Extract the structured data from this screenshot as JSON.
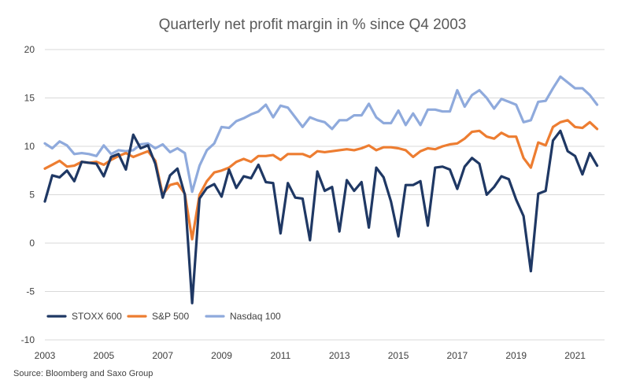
{
  "chart_data": {
    "type": "line",
    "title": "Quarterly net profit margin in % since Q4 2003",
    "xlabel": "",
    "ylabel": "",
    "x_tick_labels": [
      "2003",
      "2005",
      "2007",
      "2009",
      "2011",
      "2013",
      "2015",
      "2017",
      "2019",
      "2021"
    ],
    "x_tick_years": [
      2003,
      2005,
      2007,
      2009,
      2011,
      2013,
      2015,
      2017,
      2019,
      2021
    ],
    "xlim": [
      2003,
      2022
    ],
    "y_tick_labels": [
      "20",
      "15",
      "10",
      "5",
      "0",
      "-5",
      "-10"
    ],
    "y_tick_values": [
      20,
      15,
      10,
      5,
      0,
      -5,
      -10
    ],
    "ylim": [
      -10,
      20
    ],
    "grid": "horizontal",
    "legend_position": "bottom-left",
    "source": "Source: Bloomberg and Saxo Group",
    "x": [
      2003.0,
      2003.25,
      2003.5,
      2003.75,
      2004.0,
      2004.25,
      2004.5,
      2004.75,
      2005.0,
      2005.25,
      2005.5,
      2005.75,
      2006.0,
      2006.25,
      2006.5,
      2006.75,
      2007.0,
      2007.25,
      2007.5,
      2007.75,
      2008.0,
      2008.25,
      2008.5,
      2008.75,
      2009.0,
      2009.25,
      2009.5,
      2009.75,
      2010.0,
      2010.25,
      2010.5,
      2010.75,
      2011.0,
      2011.25,
      2011.5,
      2011.75,
      2012.0,
      2012.25,
      2012.5,
      2012.75,
      2013.0,
      2013.25,
      2013.5,
      2013.75,
      2014.0,
      2014.25,
      2014.5,
      2014.75,
      2015.0,
      2015.25,
      2015.5,
      2015.75,
      2016.0,
      2016.25,
      2016.5,
      2016.75,
      2017.0,
      2017.25,
      2017.5,
      2017.75,
      2018.0,
      2018.25,
      2018.5,
      2018.75,
      2019.0,
      2019.25,
      2019.5,
      2019.75,
      2020.0,
      2020.25,
      2020.5,
      2020.75,
      2021.0,
      2021.25,
      2021.5,
      2021.75
    ],
    "series": [
      {
        "name": "STOXX 600",
        "color": "#1f3864",
        "values": [
          4.3,
          7.0,
          6.8,
          7.5,
          6.4,
          8.4,
          8.3,
          8.2,
          6.9,
          8.9,
          9.2,
          7.6,
          11.2,
          9.8,
          10.1,
          8.2,
          4.7,
          7.0,
          7.7,
          5.0,
          -6.2,
          4.6,
          5.7,
          6.1,
          4.8,
          7.6,
          5.7,
          6.9,
          6.7,
          8.1,
          6.3,
          6.2,
          1.0,
          6.2,
          4.7,
          4.6,
          0.3,
          7.4,
          5.4,
          5.8,
          1.2,
          6.5,
          5.4,
          6.3,
          1.6,
          7.8,
          6.8,
          4.3,
          0.7,
          6.0,
          6.0,
          6.4,
          1.8,
          7.8,
          7.9,
          7.6,
          5.6,
          7.9,
          8.8,
          8.2,
          5.0,
          5.8,
          6.9,
          6.6,
          4.5,
          2.8,
          -2.9,
          5.1,
          5.4,
          10.6,
          11.6,
          9.5,
          9.0,
          7.1,
          9.3,
          8.0
        ]
      },
      {
        "name": "S&P 500",
        "color": "#ed7d31",
        "values": [
          7.7,
          8.1,
          8.5,
          7.9,
          8.0,
          8.4,
          8.3,
          8.4,
          8.1,
          8.6,
          9.0,
          9.3,
          8.9,
          9.2,
          9.5,
          8.5,
          5.0,
          6.0,
          6.2,
          5.1,
          0.4,
          5.0,
          6.4,
          7.3,
          7.5,
          7.8,
          8.4,
          8.7,
          8.4,
          9.0,
          9.0,
          9.1,
          8.6,
          9.2,
          9.2,
          9.2,
          8.9,
          9.5,
          9.4,
          9.5,
          9.6,
          9.7,
          9.6,
          9.8,
          10.1,
          9.6,
          9.9,
          9.9,
          9.8,
          9.6,
          8.9,
          9.5,
          9.8,
          9.7,
          10.0,
          10.2,
          10.3,
          10.8,
          11.5,
          11.6,
          11.0,
          10.8,
          11.4,
          11.0,
          11.0,
          8.8,
          7.8,
          10.4,
          10.1,
          12.0,
          12.5,
          12.7,
          12.0,
          11.9,
          12.5,
          11.8
        ]
      },
      {
        "name": "Nasdaq 100",
        "color": "#8faadc",
        "values": [
          10.3,
          9.8,
          10.5,
          10.1,
          9.2,
          9.3,
          9.2,
          9.0,
          10.1,
          9.2,
          9.6,
          9.5,
          9.6,
          10.2,
          10.3,
          9.8,
          10.2,
          9.4,
          9.8,
          9.3,
          5.3,
          8.0,
          9.6,
          10.3,
          12.0,
          11.9,
          12.6,
          12.9,
          13.3,
          13.6,
          14.3,
          13.0,
          14.2,
          14.0,
          13.0,
          12.0,
          13.0,
          12.7,
          12.5,
          11.8,
          12.7,
          12.7,
          13.2,
          13.2,
          14.4,
          13.0,
          12.4,
          12.4,
          13.7,
          12.2,
          13.4,
          12.2,
          13.8,
          13.8,
          13.6,
          13.6,
          15.8,
          14.1,
          15.3,
          15.8,
          15.0,
          13.9,
          14.9,
          14.6,
          14.3,
          12.5,
          12.7,
          14.6,
          14.7,
          16.0,
          17.2,
          16.6,
          16.0,
          16.0,
          15.3,
          14.3
        ]
      }
    ]
  }
}
